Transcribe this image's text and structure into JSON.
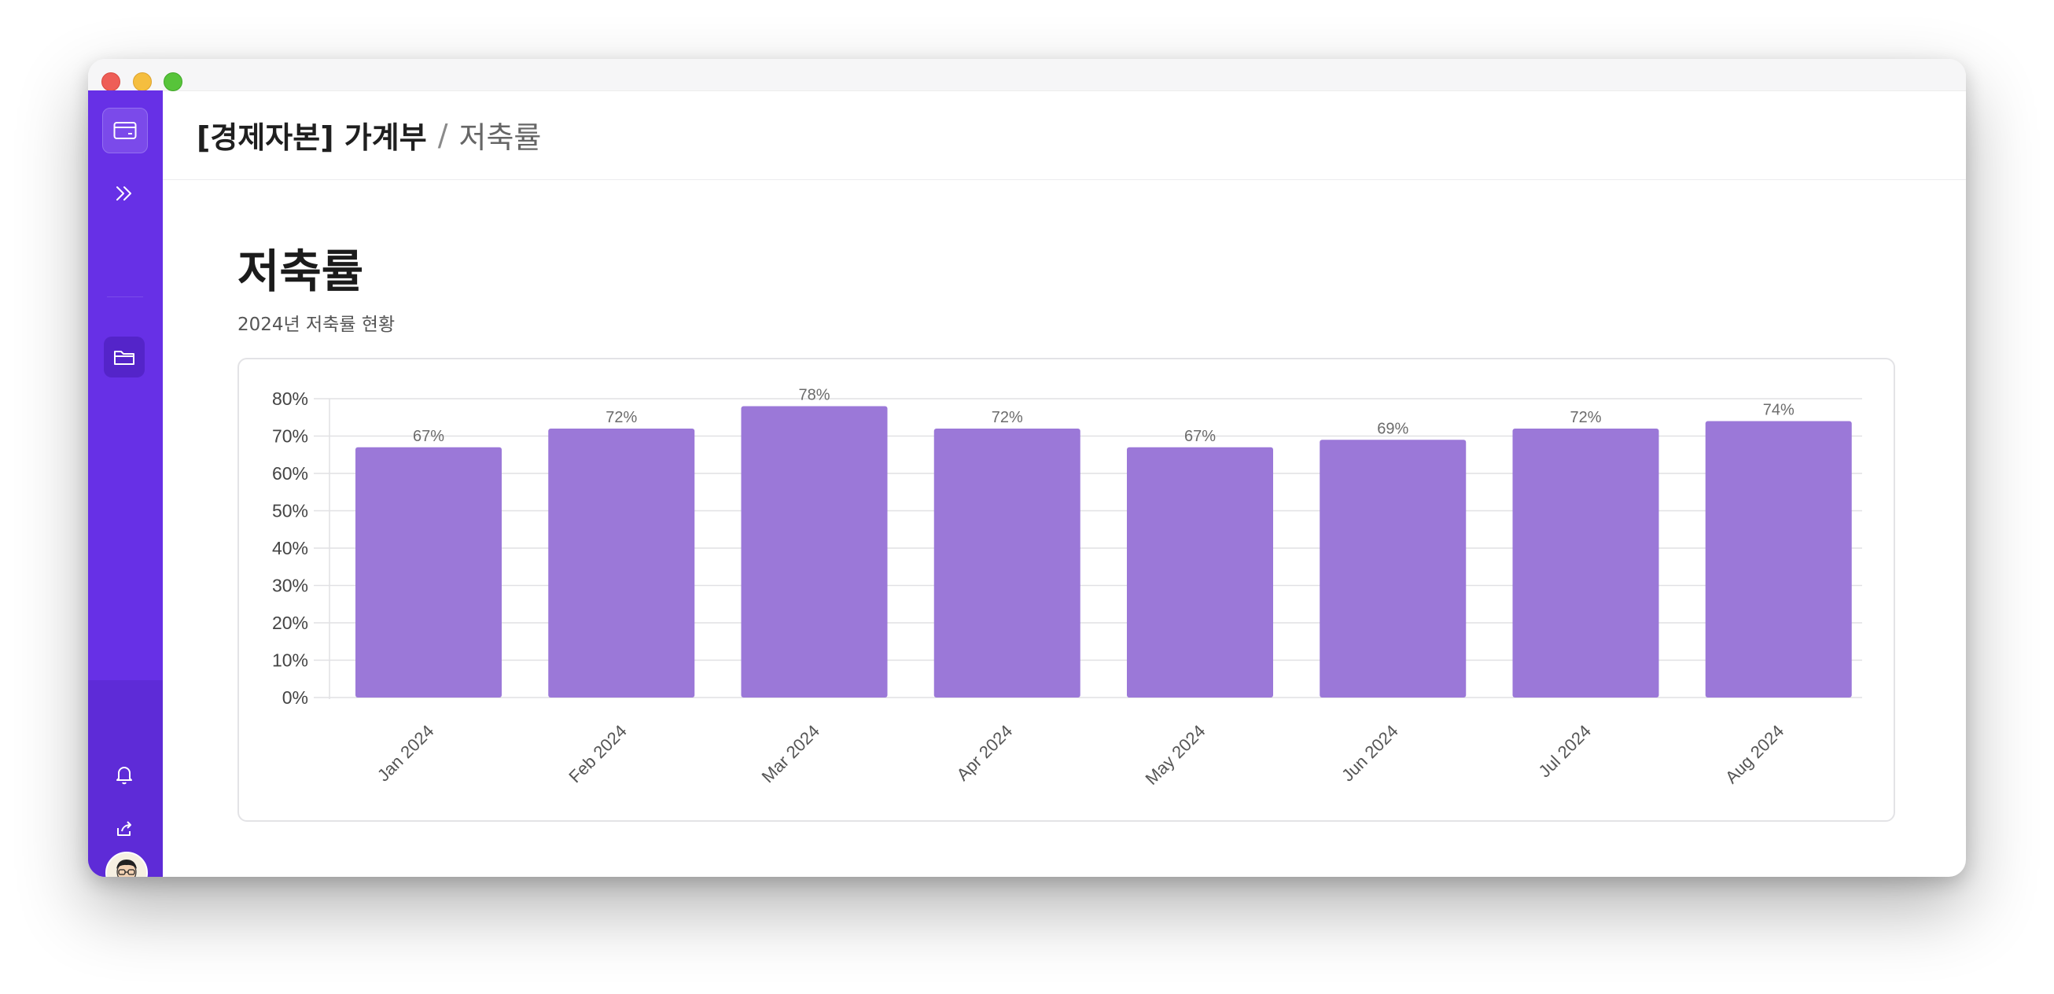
{
  "header": {
    "app_title": "[경제자본] 가계부",
    "separator": "/",
    "breadcrumb": "저축률"
  },
  "page": {
    "title": "저축률",
    "subtitle": "2024년 저축률 현황"
  },
  "sidebar": {
    "icons": [
      "card-icon",
      "chevrons-right-icon",
      "folder-icon",
      "bell-icon",
      "share-icon"
    ]
  },
  "colors": {
    "sidebar": "#6730e6",
    "bar": "#9b78d8",
    "grid": "#e1e1e4"
  },
  "chart_data": {
    "type": "bar",
    "categories": [
      "Jan 2024",
      "Feb 2024",
      "Mar 2024",
      "Apr 2024",
      "May 2024",
      "Jun 2024",
      "Jul 2024",
      "Aug 2024"
    ],
    "values": [
      67,
      72,
      78,
      72,
      67,
      69,
      72,
      74
    ],
    "value_labels": [
      "67%",
      "72%",
      "78%",
      "72%",
      "67%",
      "69%",
      "72%",
      "74%"
    ],
    "y_ticks": [
      "0%",
      "10%",
      "20%",
      "30%",
      "40%",
      "50%",
      "60%",
      "70%",
      "80%"
    ],
    "ylim": [
      0,
      80
    ],
    "grid": true,
    "title": "",
    "xlabel": "",
    "ylabel": ""
  }
}
